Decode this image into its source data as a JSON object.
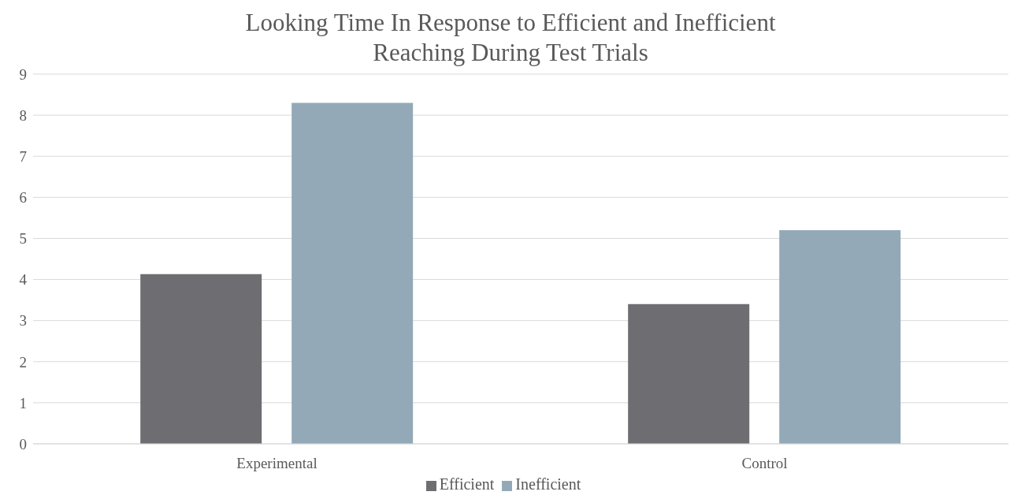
{
  "chart_data": {
    "type": "bar",
    "title": "Looking Time In Response to Efficient and Inefficient Reaching During Test Trials",
    "categories": [
      "Experimental",
      "Control"
    ],
    "series": [
      {
        "name": "Efficient",
        "color": "#6e6d72",
        "values": [
          4.13,
          3.4
        ]
      },
      {
        "name": "Inefficient",
        "color": "#93a9b8",
        "values": [
          8.3,
          5.2
        ]
      }
    ],
    "ylim": [
      0,
      9
    ],
    "yticks": [
      0,
      1,
      2,
      3,
      4,
      5,
      6,
      7,
      8,
      9
    ],
    "grid": "y",
    "legend": "bottom"
  }
}
